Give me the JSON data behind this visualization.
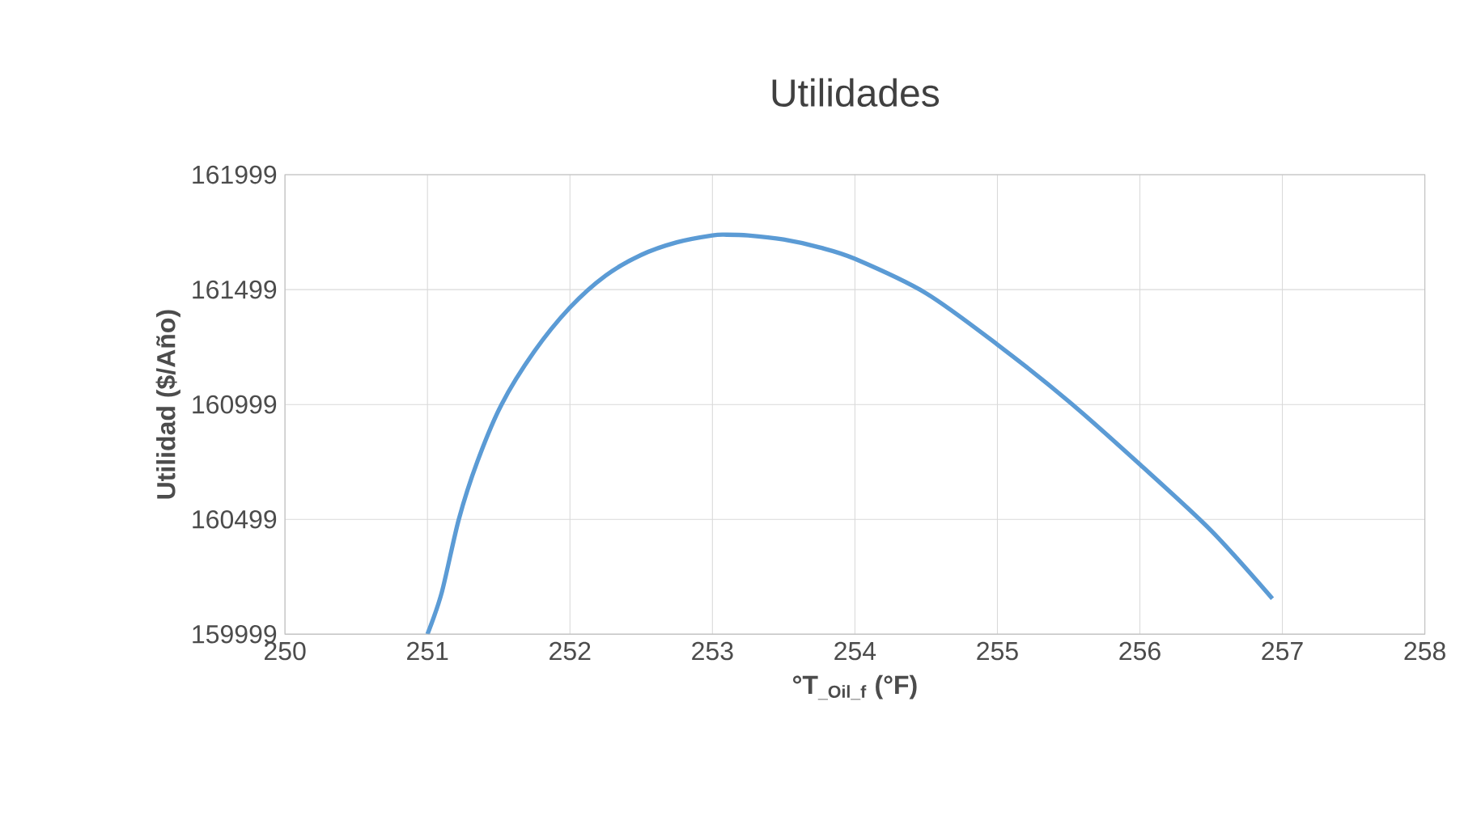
{
  "chart_data": {
    "type": "line",
    "title": "Utilidades",
    "xlabel": "°T$_{_Oil_f}$ (°F)",
    "ylabel": "Utilidad  ($/Año)",
    "x": [
      251.0,
      251.1,
      251.22,
      251.35,
      251.52,
      251.75,
      252.0,
      252.25,
      252.5,
      252.75,
      253.0,
      253.1,
      253.25,
      253.5,
      253.75,
      254.0,
      254.5,
      255.0,
      255.5,
      256.0,
      256.5,
      256.93
    ],
    "series": [
      {
        "color": "#5b9bd5",
        "values": [
          159999,
          160180,
          160499,
          160750,
          160999,
          161230,
          161421,
          161560,
          161650,
          161705,
          161735,
          161738,
          161735,
          161717,
          161683,
          161633,
          161483,
          161260,
          161013,
          160738,
          160450,
          160154
        ]
      }
    ],
    "xlim": [
      250,
      258
    ],
    "xticks": [
      250,
      251,
      252,
      253,
      254,
      255,
      256,
      257,
      258
    ],
    "ylim": [
      159999,
      161999
    ],
    "yticks": [
      159999,
      160499,
      160999,
      161499,
      161999
    ],
    "grid": true,
    "marker": "none",
    "line_style": "solid"
  }
}
